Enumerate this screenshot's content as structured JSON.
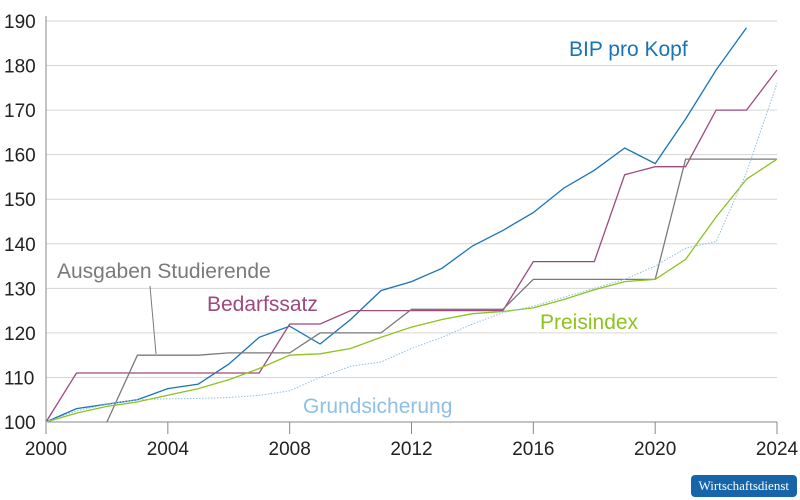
{
  "chart_data": {
    "type": "line",
    "x": [
      2000,
      2001,
      2002,
      2003,
      2004,
      2005,
      2006,
      2007,
      2008,
      2009,
      2010,
      2011,
      2012,
      2013,
      2014,
      2015,
      2016,
      2017,
      2018,
      2019,
      2020,
      2021,
      2022,
      2023,
      2024
    ],
    "xlim": [
      2000,
      2024
    ],
    "ylim": [
      100,
      190
    ],
    "xticks": [
      "2000",
      "2004",
      "2008",
      "2012",
      "2016",
      "2020",
      "2024"
    ],
    "yticks": [
      "100",
      "110",
      "120",
      "130",
      "140",
      "150",
      "160",
      "170",
      "180",
      "190"
    ],
    "grid": "horizontal",
    "series": [
      {
        "name": "BIP pro Kopf",
        "color": "#1a73b8",
        "style": "solid",
        "values": [
          100,
          103,
          104,
          105,
          107.5,
          108.5,
          113,
          119,
          121.5,
          117.5,
          123,
          129.5,
          131.5,
          134.5,
          139.5,
          143,
          147,
          152.5,
          156.5,
          161.5,
          158,
          168,
          179,
          188.5,
          null
        ]
      },
      {
        "name": "Bedarfssatz",
        "color": "#9c4a7e",
        "style": "solid",
        "values": [
          100,
          111,
          111,
          111,
          111,
          111,
          111,
          111,
          122,
          122,
          125,
          125,
          125,
          125,
          125,
          125,
          136,
          136,
          136,
          155.5,
          157.3,
          157.3,
          170,
          170,
          179
        ]
      },
      {
        "name": "Ausgaben Studierende",
        "color": "#7a7a7a",
        "style": "solid",
        "values": [
          null,
          null,
          100,
          115,
          115,
          115,
          115.5,
          115.5,
          115.5,
          120,
          120,
          120,
          125.3,
          125.3,
          125.3,
          125.3,
          132,
          132,
          132,
          132,
          132,
          159,
          159,
          159,
          159
        ]
      },
      {
        "name": "Preisindex",
        "color": "#8dc21f",
        "style": "solid",
        "values": [
          100,
          102,
          103.5,
          104.5,
          106,
          107.5,
          109.5,
          112,
          115,
          115.3,
          116.5,
          119,
          121.3,
          123,
          124.3,
          124.8,
          125.6,
          127.5,
          129.7,
          131.5,
          132,
          136.5,
          146,
          154.5,
          159
        ]
      },
      {
        "name": "Grundsicherung",
        "color": "#8fbfe3",
        "style": "dotted",
        "values": [
          100,
          102.5,
          104,
          105,
          105.2,
          105.3,
          105.5,
          106,
          107,
          110,
          112.5,
          113.5,
          116.5,
          119,
          122,
          124.5,
          126,
          128,
          130,
          132,
          135,
          139,
          140.5,
          156,
          176
        ]
      }
    ]
  },
  "watermark": "Wirtschaftsdienst"
}
